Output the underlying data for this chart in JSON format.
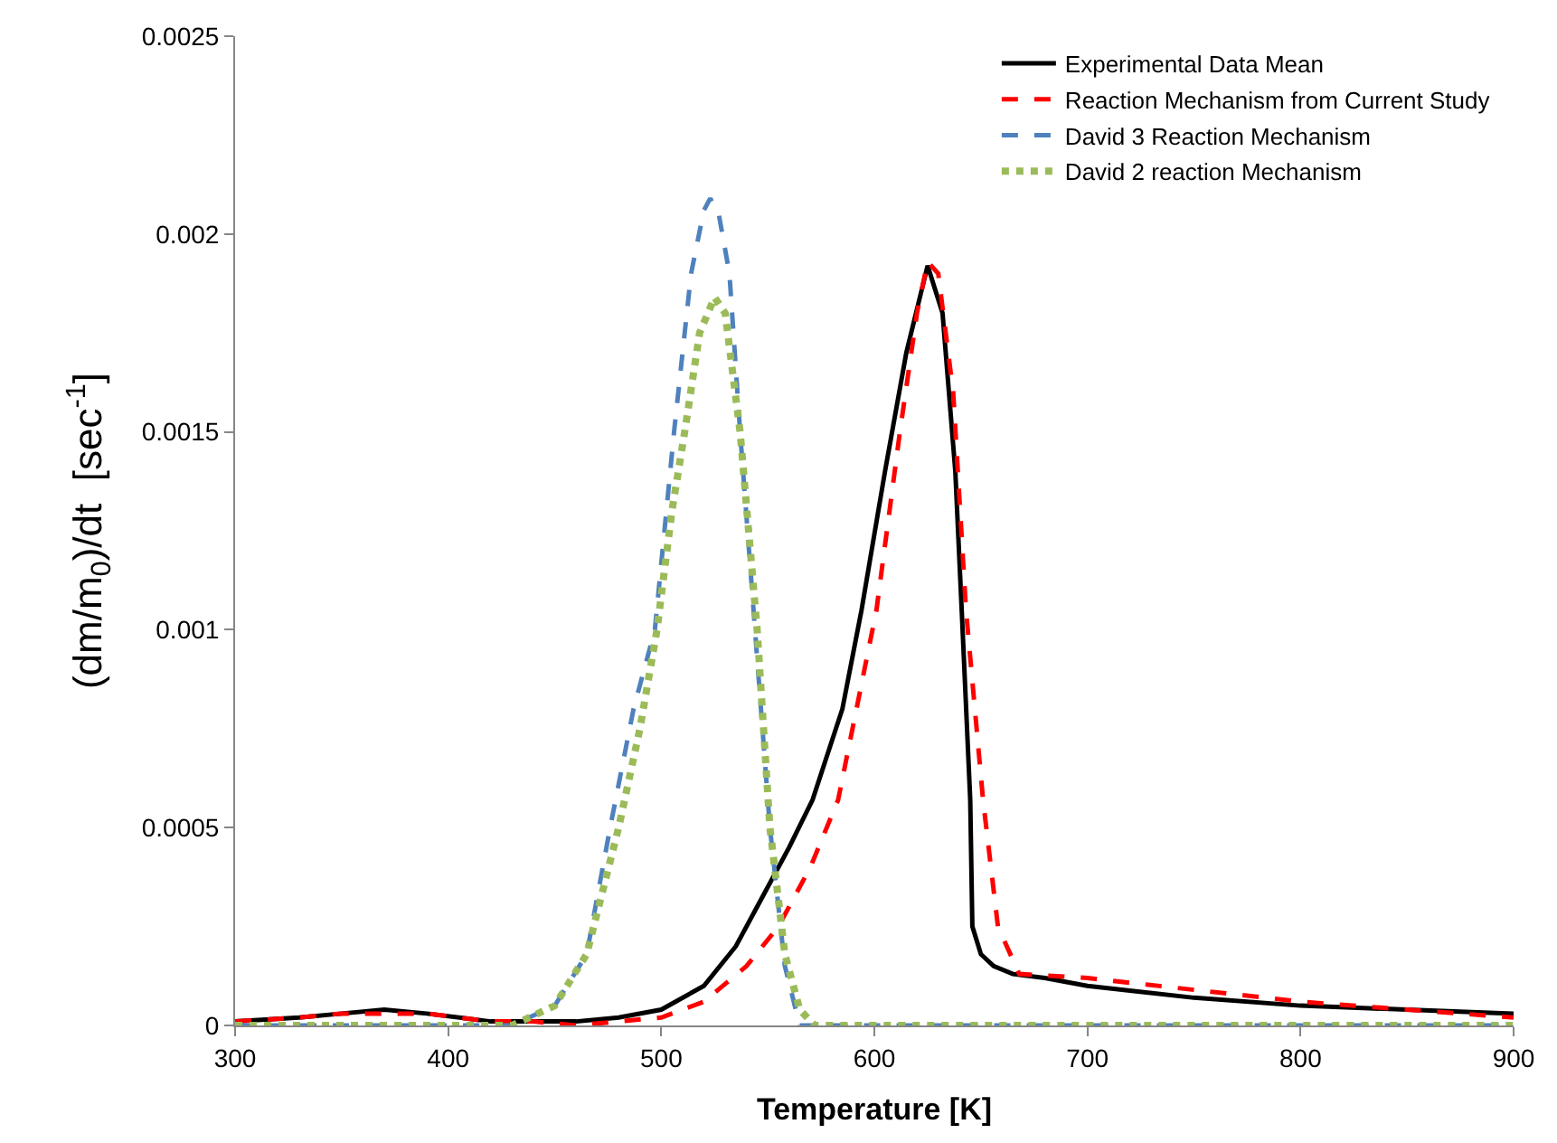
{
  "chart_data": {
    "type": "line",
    "xlabel": "Temperature [K]",
    "ylabel": "(dm/m$_{0}$)/dt  [sec$^{-1}$]",
    "xlim": [
      300,
      900
    ],
    "xticks": [
      300,
      400,
      500,
      600,
      700,
      800,
      900
    ],
    "ylim": [
      0,
      0.0025
    ],
    "yticks": [
      {
        "value": 0,
        "label": "0"
      },
      {
        "value": 0.0005,
        "label": "0.0005"
      },
      {
        "value": 0.001,
        "label": "0.001"
      },
      {
        "value": 0.0015,
        "label": "0.0015"
      },
      {
        "value": 0.002,
        "label": "0.002"
      },
      {
        "value": 0.0025,
        "label": "0.0025"
      }
    ],
    "grid": false,
    "legend": "top right",
    "marker": "none",
    "series": [
      {
        "name": "Experimental Data Mean",
        "color": "#000000",
        "line_style": "solid",
        "x": [
          300,
          330,
          350,
          370,
          390,
          420,
          440,
          460,
          480,
          500,
          520,
          535,
          545,
          560,
          571,
          585,
          594,
          605,
          615,
          625,
          632,
          638,
          641,
          645,
          646,
          650,
          656,
          665,
          680,
          700,
          750,
          800,
          850,
          900
        ],
        "values": [
          1e-05,
          2e-05,
          3e-05,
          4e-05,
          3e-05,
          1e-05,
          1e-05,
          1e-05,
          2e-05,
          4e-05,
          0.0001,
          0.0002,
          0.0003,
          0.00045,
          0.00057,
          0.0008,
          0.00105,
          0.0014,
          0.0017,
          0.00192,
          0.0018,
          0.0014,
          0.00105,
          0.00057,
          0.00025,
          0.00018,
          0.00015,
          0.00013,
          0.00012,
          0.0001,
          7e-05,
          5e-05,
          4e-05,
          3e-05
        ]
      },
      {
        "name": "Reaction Mechanism from Current Study",
        "color": "#ff0000",
        "line_style": "dashed",
        "x": [
          300,
          330,
          350,
          370,
          390,
          420,
          440,
          460,
          480,
          500,
          520,
          540,
          555,
          570,
          583,
          601,
          612,
          620,
          625,
          630,
          637,
          643,
          651,
          658,
          668,
          700,
          750,
          800,
          850,
          900
        ],
        "values": [
          1e-05,
          2e-05,
          3e-05,
          3e-05,
          3e-05,
          1e-05,
          1e-05,
          0,
          1e-05,
          2e-05,
          6e-05,
          0.00015,
          0.00025,
          0.0004,
          0.00057,
          0.00105,
          0.0015,
          0.0018,
          0.00193,
          0.0019,
          0.0016,
          0.00105,
          0.00057,
          0.00025,
          0.00013,
          0.00012,
          9e-05,
          6e-05,
          4e-05,
          2e-05
        ]
      },
      {
        "name": "David 3 Reaction Mechanism",
        "color": "#4f81bd",
        "line_style": "dashed",
        "x": [
          300,
          430,
          450,
          465,
          476,
          487,
          497,
          506,
          514,
          520,
          523,
          527,
          532,
          537,
          544,
          551,
          558,
          565,
          600,
          700,
          800,
          900
        ],
        "values": [
          0,
          0,
          5e-05,
          0.00018,
          0.0005,
          0.0008,
          0.001,
          0.0015,
          0.0019,
          0.00206,
          0.00209,
          0.00205,
          0.0019,
          0.0015,
          0.001,
          0.0005,
          0.00015,
          0,
          0,
          0,
          0,
          0
        ]
      },
      {
        "name": "David 2 reaction Mechanism",
        "color": "#9bbb59",
        "line_style": "dotted",
        "x": [
          300,
          430,
          450,
          465,
          480,
          490,
          498,
          505,
          511,
          518,
          525,
          530,
          537,
          545,
          551,
          558,
          565,
          572,
          600,
          700,
          800,
          900
        ],
        "values": [
          0,
          0,
          5e-05,
          0.00018,
          0.0005,
          0.00075,
          0.001,
          0.0013,
          0.0015,
          0.00175,
          0.00184,
          0.0018,
          0.0015,
          0.001,
          0.0005,
          0.00018,
          4e-05,
          0,
          0,
          0,
          0,
          0
        ]
      }
    ]
  }
}
